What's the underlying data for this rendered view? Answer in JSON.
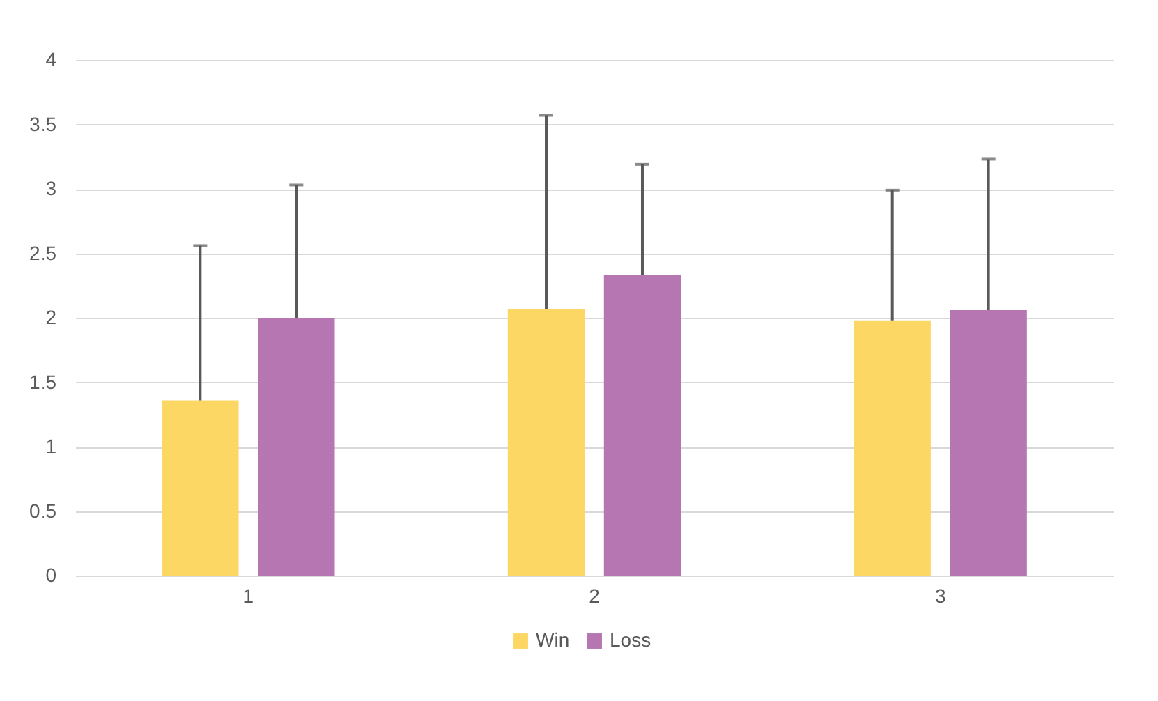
{
  "chart_data": {
    "type": "bar",
    "categories": [
      "1",
      "2",
      "3"
    ],
    "series": [
      {
        "name": "Win",
        "color": "#fdd764",
        "values": [
          1.36,
          2.07,
          1.98
        ],
        "errors": [
          [
            1.36,
            2.56
          ],
          [
            2.07,
            3.57
          ],
          [
            1.98,
            2.99
          ]
        ]
      },
      {
        "name": "Loss",
        "color": "#b576b2",
        "values": [
          2.0,
          2.33,
          2.06
        ],
        "errors": [
          [
            2.0,
            3.03
          ],
          [
            2.33,
            3.19
          ],
          [
            2.06,
            3.23
          ]
        ]
      }
    ],
    "ylim": [
      0,
      4
    ],
    "yticks": [
      0,
      0.5,
      1,
      1.5,
      2,
      2.5,
      3,
      3.5,
      4
    ],
    "grid": "y",
    "legend": "bottom"
  }
}
